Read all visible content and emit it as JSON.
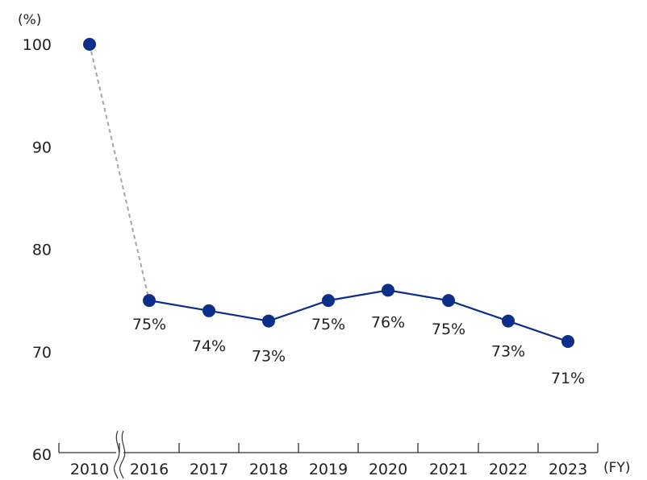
{
  "chart_data": {
    "type": "line",
    "title": "",
    "xlabel": "",
    "ylabel": "",
    "y_unit": "(%)",
    "x_unit": "(FY)",
    "categories": [
      "2010",
      "2016",
      "2017",
      "2018",
      "2019",
      "2020",
      "2021",
      "2022",
      "2023"
    ],
    "values": [
      100,
      75,
      74,
      73,
      75,
      76,
      75,
      73,
      71
    ],
    "data_labels": [
      "",
      "75%",
      "74%",
      "73%",
      "75%",
      "76%",
      "75%",
      "73%",
      "71%"
    ],
    "ylim": [
      60,
      100
    ],
    "yticks": [
      60,
      70,
      80,
      90,
      100
    ],
    "axis_break_after": "2010",
    "dashed_segment": [
      "2010",
      "2016"
    ],
    "grid": false,
    "colors": {
      "series": "#0b2f8a",
      "marker": "#0b2f8a",
      "dashed": "#a6a6a6",
      "axis": "#333333",
      "text": "#222222"
    }
  }
}
